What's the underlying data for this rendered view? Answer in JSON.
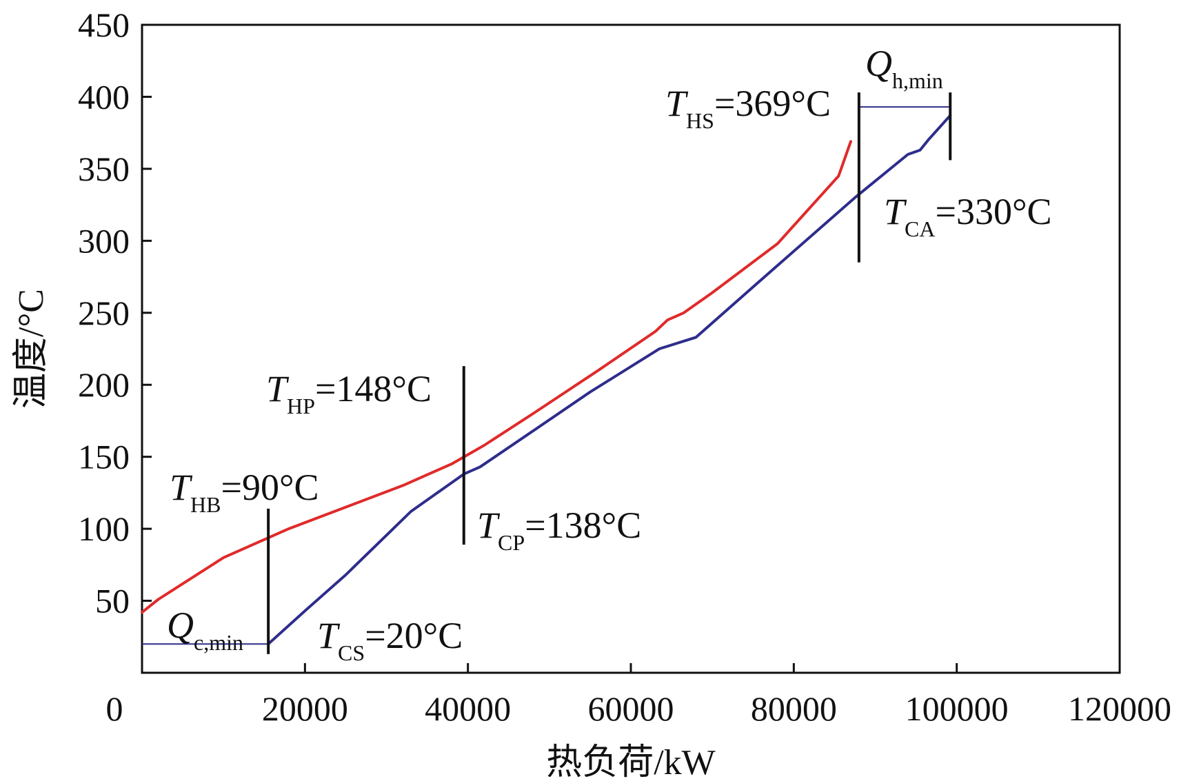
{
  "chart_data": {
    "type": "line",
    "title": "",
    "xlabel": "热负荷/kW",
    "ylabel": "温度/°C",
    "xlim": [
      0,
      120000
    ],
    "ylim": [
      0,
      450
    ],
    "x_ticks": [
      0,
      20000,
      40000,
      60000,
      80000,
      100000,
      120000
    ],
    "y_ticks": [
      50,
      100,
      150,
      200,
      250,
      300,
      350,
      400,
      450
    ],
    "grid": false,
    "legend": "none",
    "colors": {
      "hot": "#e02a2a",
      "cold": "#2e2d8c",
      "marker": "#111111",
      "axis": "#111111"
    },
    "series": [
      {
        "x": [
          0,
          2000,
          10000,
          18000,
          25000,
          32000,
          38000,
          42000,
          48000,
          56000,
          63000,
          64500,
          66500,
          70000,
          78000,
          85500,
          87000
        ],
        "y": [
          42,
          51,
          80,
          100,
          115,
          130,
          145,
          158,
          180,
          210,
          237,
          245,
          250,
          264,
          298,
          345,
          369
        ]
      },
      {
        "x": [
          15500,
          20000,
          25000,
          33000,
          39500,
          41500,
          48000,
          55000,
          63500,
          68000,
          75000,
          87500,
          94000,
          95500,
          96500,
          99200
        ],
        "y": [
          20,
          43,
          68,
          112,
          138,
          143,
          168,
          195,
          225,
          233,
          268,
          330,
          360,
          363,
          370,
          387
        ]
      }
    ],
    "markers": [
      {
        "x": 15500,
        "y_from": 13,
        "y_to": 114
      },
      {
        "x": 39500,
        "y_from": 89,
        "y_to": 213
      },
      {
        "x": 88000,
        "y_from": 285,
        "y_to": 403
      },
      {
        "x": 99200,
        "y_from": 356,
        "y_to": 403
      }
    ],
    "gaps": [
      {
        "x1": 0,
        "x2": 15500,
        "y": 20
      },
      {
        "x1": 88000,
        "x2": 99200,
        "y": 393
      }
    ],
    "annotations": [
      {
        "sym": "T",
        "sub": "HS",
        "rest": "=369°C"
      },
      {
        "sym": "T",
        "sub": "CA",
        "rest": "=330°C"
      },
      {
        "sym": "T",
        "sub": "HP",
        "rest": "=148°C"
      },
      {
        "sym": "T",
        "sub": "CP",
        "rest": "=138°C"
      },
      {
        "sym": "T",
        "sub": "HB",
        "rest": "=90°C"
      },
      {
        "sym": "T",
        "sub": "CS",
        "rest": "=20°C"
      },
      {
        "sym": "Q",
        "sub": "h,min",
        "rest": ""
      },
      {
        "sym": "Q",
        "sub": "c,min",
        "rest": ""
      }
    ]
  }
}
